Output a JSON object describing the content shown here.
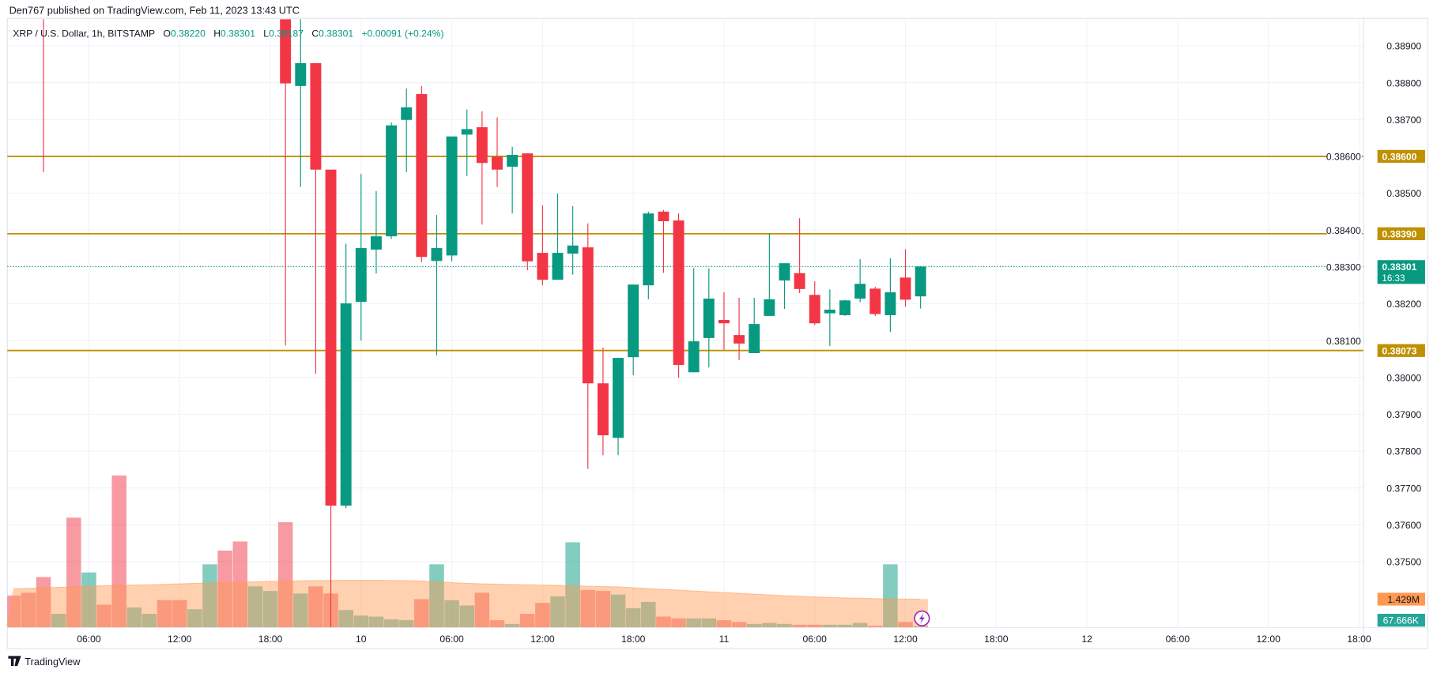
{
  "header": {
    "published": "Den767 published on TradingView.com, Feb 11, 2023 13:43 UTC"
  },
  "legend": {
    "symbol": "XRP / U.S. Dollar, 1h, BITSTAMP",
    "o_label": "O",
    "o": "0.38220",
    "h_label": "H",
    "h": "0.38301",
    "l_label": "L",
    "l": "0.38187",
    "c_label": "C",
    "c": "0.38301",
    "change": "+0.00091 (+0.24%)"
  },
  "footer": {
    "logo_text": "TradingView"
  },
  "colors": {
    "up": "#089981",
    "down": "#f23645",
    "level": "#bf9000",
    "volume_ma": "#ff9850",
    "grid": "#f0f3fa"
  },
  "chart_data": {
    "type": "candlestick",
    "title": "",
    "ylim": [
      0.3732,
      0.3897
    ],
    "y_ticks": [
      "0.38900",
      "0.38800",
      "0.38700",
      "0.38600",
      "0.38500",
      "0.38400",
      "0.38300",
      "0.38200",
      "0.38100",
      "0.38000",
      "0.37900",
      "0.37800",
      "0.37700",
      "0.37600",
      "0.37500"
    ],
    "x_ticks": [
      {
        "t": "2023-02-09 06:00",
        "label": "06:00"
      },
      {
        "t": "2023-02-09 12:00",
        "label": "12:00"
      },
      {
        "t": "2023-02-09 18:00",
        "label": "18:00"
      },
      {
        "t": "2023-02-10 00:00",
        "label": "10"
      },
      {
        "t": "2023-02-10 06:00",
        "label": "06:00"
      },
      {
        "t": "2023-02-10 12:00",
        "label": "12:00"
      },
      {
        "t": "2023-02-10 18:00",
        "label": "18:00"
      },
      {
        "t": "2023-02-11 00:00",
        "label": "11"
      },
      {
        "t": "2023-02-11 06:00",
        "label": "06:00"
      },
      {
        "t": "2023-02-11 12:00",
        "label": "12:00"
      },
      {
        "t": "2023-02-11 18:00",
        "label": "18:00"
      },
      {
        "t": "2023-02-12 00:00",
        "label": "12"
      },
      {
        "t": "2023-02-12 06:00",
        "label": "06:00"
      },
      {
        "t": "2023-02-12 12:00",
        "label": "12:00"
      },
      {
        "t": "2023-02-12 18:00",
        "label": "18:00"
      }
    ],
    "grid": true,
    "candle_fields": [
      "time",
      "open",
      "high",
      "low",
      "close"
    ],
    "candles": [
      [
        "2023-02-09 03:00",
        0.3905,
        0.391,
        0.38557,
        0.3899
      ],
      [
        "2023-02-09 19:00",
        0.39,
        0.3905,
        0.38087,
        0.38798
      ],
      [
        "2023-02-09 20:00",
        0.38791,
        0.3898,
        0.38517,
        0.38853
      ],
      [
        "2023-02-09 21:00",
        0.38853,
        0.38853,
        0.3801,
        0.38564
      ],
      [
        "2023-02-09 22:00",
        0.38564,
        0.38564,
        0.37321,
        0.37652
      ],
      [
        "2023-02-09 23:00",
        0.37652,
        0.38363,
        0.37645,
        0.38201
      ],
      [
        "2023-02-10 00:00",
        0.38205,
        0.38552,
        0.381,
        0.38351
      ],
      [
        "2023-02-10 01:00",
        0.38347,
        0.38506,
        0.38282,
        0.38383
      ],
      [
        "2023-02-10 02:00",
        0.38383,
        0.38692,
        0.38376,
        0.38684
      ],
      [
        "2023-02-10 03:00",
        0.38699,
        0.38784,
        0.38557,
        0.38733
      ],
      [
        "2023-02-10 04:00",
        0.38769,
        0.38791,
        0.38313,
        0.38327
      ],
      [
        "2023-02-10 05:00",
        0.38316,
        0.38441,
        0.3806,
        0.38351
      ],
      [
        "2023-02-10 06:00",
        0.38331,
        0.38654,
        0.38315,
        0.38654
      ],
      [
        "2023-02-10 07:00",
        0.38659,
        0.38727,
        0.38547,
        0.38674
      ],
      [
        "2023-02-10 08:00",
        0.38679,
        0.38722,
        0.38415,
        0.38582
      ],
      [
        "2023-02-10 09:00",
        0.38599,
        0.38706,
        0.38517,
        0.38564
      ],
      [
        "2023-02-10 10:00",
        0.38572,
        0.38626,
        0.38445,
        0.38604
      ],
      [
        "2023-02-10 11:00",
        0.38608,
        0.38608,
        0.38291,
        0.38315
      ],
      [
        "2023-02-10 12:00",
        0.38338,
        0.38467,
        0.3825,
        0.38265
      ],
      [
        "2023-02-10 13:00",
        0.38265,
        0.38499,
        0.38265,
        0.38338
      ],
      [
        "2023-02-10 14:00",
        0.38336,
        0.38465,
        0.38279,
        0.38358
      ],
      [
        "2023-02-10 15:00",
        0.38353,
        0.38418,
        0.37752,
        0.37984
      ],
      [
        "2023-02-10 16:00",
        0.37984,
        0.38081,
        0.37789,
        0.37843
      ],
      [
        "2023-02-10 17:00",
        0.37836,
        0.38053,
        0.37789,
        0.38053
      ],
      [
        "2023-02-10 18:00",
        0.38055,
        0.38252,
        0.38006,
        0.38252
      ],
      [
        "2023-02-10 19:00",
        0.3825,
        0.3845,
        0.38212,
        0.38445
      ],
      [
        "2023-02-10 20:00",
        0.3845,
        0.38454,
        0.38284,
        0.38424
      ],
      [
        "2023-02-10 21:00",
        0.38426,
        0.38445,
        0.37999,
        0.38034
      ],
      [
        "2023-02-10 22:00",
        0.38014,
        0.38297,
        0.38014,
        0.38098
      ],
      [
        "2023-02-10 23:00",
        0.38107,
        0.38296,
        0.38027,
        0.38214
      ],
      [
        "2023-02-11 00:00",
        0.38156,
        0.38231,
        0.38075,
        0.38147
      ],
      [
        "2023-02-11 01:00",
        0.38115,
        0.38216,
        0.38047,
        0.38092
      ],
      [
        "2023-02-11 02:00",
        0.38066,
        0.38216,
        0.38066,
        0.38145
      ],
      [
        "2023-02-11 03:00",
        0.38167,
        0.3839,
        0.38167,
        0.38212
      ],
      [
        "2023-02-11 04:00",
        0.38263,
        0.3831,
        0.38186,
        0.3831
      ],
      [
        "2023-02-11 05:00",
        0.38283,
        0.38432,
        0.38229,
        0.3824
      ],
      [
        "2023-02-11 06:00",
        0.38224,
        0.38261,
        0.38142,
        0.38147
      ],
      [
        "2023-02-11 07:00",
        0.38174,
        0.38239,
        0.38085,
        0.38184
      ],
      [
        "2023-02-11 08:00",
        0.38169,
        0.38211,
        0.38167,
        0.38209
      ],
      [
        "2023-02-11 09:00",
        0.38214,
        0.38321,
        0.38204,
        0.38254
      ],
      [
        "2023-02-11 10:00",
        0.38241,
        0.38246,
        0.38167,
        0.38172
      ],
      [
        "2023-02-11 11:00",
        0.38169,
        0.38323,
        0.38124,
        0.38231
      ],
      [
        "2023-02-11 12:00",
        0.38271,
        0.38348,
        0.38192,
        0.38211
      ],
      [
        "2023-02-11 13:00",
        0.3822,
        0.38301,
        0.38187,
        0.38301
      ]
    ],
    "volume_fields": [
      "time",
      "volume",
      "direction"
    ],
    "volume": [
      [
        "2023-02-09 01:00",
        1610000,
        "down"
      ],
      [
        "2023-02-09 02:00",
        1750000,
        "down"
      ],
      [
        "2023-02-09 03:00",
        2540000,
        "down"
      ],
      [
        "2023-02-09 04:00",
        690000,
        "up"
      ],
      [
        "2023-02-09 05:00",
        5530000,
        "down"
      ],
      [
        "2023-02-09 06:00",
        2770000,
        "up"
      ],
      [
        "2023-02-09 07:00",
        1150000,
        "down"
      ],
      [
        "2023-02-09 08:00",
        7650000,
        "down"
      ],
      [
        "2023-02-09 09:00",
        1010000,
        "up"
      ],
      [
        "2023-02-09 10:00",
        690000,
        "up"
      ],
      [
        "2023-02-09 11:00",
        1380000,
        "down"
      ],
      [
        "2023-02-09 12:00",
        1380000,
        "down"
      ],
      [
        "2023-02-09 13:00",
        920000,
        "up"
      ],
      [
        "2023-02-09 14:00",
        3180000,
        "up"
      ],
      [
        "2023-02-09 15:00",
        3870000,
        "down"
      ],
      [
        "2023-02-09 16:00",
        4330000,
        "down"
      ],
      [
        "2023-02-09 17:00",
        2070000,
        "up"
      ],
      [
        "2023-02-09 18:00",
        1840000,
        "up"
      ],
      [
        "2023-02-09 19:00",
        5300000,
        "down"
      ],
      [
        "2023-02-09 20:00",
        1710000,
        "up"
      ],
      [
        "2023-02-09 21:00",
        2070000,
        "down"
      ],
      [
        "2023-02-09 22:00",
        1710000,
        "down"
      ],
      [
        "2023-02-09 23:00",
        880000,
        "up"
      ],
      [
        "2023-02-10 00:00",
        600000,
        "up"
      ],
      [
        "2023-02-10 01:00",
        550000,
        "up"
      ],
      [
        "2023-02-10 02:00",
        410000,
        "up"
      ],
      [
        "2023-02-10 03:00",
        370000,
        "up"
      ],
      [
        "2023-02-10 04:00",
        1430000,
        "down"
      ],
      [
        "2023-02-10 05:00",
        3180000,
        "up"
      ],
      [
        "2023-02-10 06:00",
        1380000,
        "up"
      ],
      [
        "2023-02-10 07:00",
        1110000,
        "up"
      ],
      [
        "2023-02-10 08:00",
        1750000,
        "down"
      ],
      [
        "2023-02-10 09:00",
        370000,
        "down"
      ],
      [
        "2023-02-10 10:00",
        180000,
        "up"
      ],
      [
        "2023-02-10 11:00",
        690000,
        "down"
      ],
      [
        "2023-02-10 12:00",
        1240000,
        "down"
      ],
      [
        "2023-02-10 13:00",
        1570000,
        "up"
      ],
      [
        "2023-02-10 14:00",
        4290000,
        "up"
      ],
      [
        "2023-02-10 15:00",
        1890000,
        "down"
      ],
      [
        "2023-02-10 16:00",
        1840000,
        "down"
      ],
      [
        "2023-02-10 17:00",
        1660000,
        "up"
      ],
      [
        "2023-02-10 18:00",
        970000,
        "up"
      ],
      [
        "2023-02-10 19:00",
        1290000,
        "up"
      ],
      [
        "2023-02-10 20:00",
        550000,
        "down"
      ],
      [
        "2023-02-10 21:00",
        460000,
        "down"
      ],
      [
        "2023-02-10 22:00",
        460000,
        "up"
      ],
      [
        "2023-02-10 23:00",
        460000,
        "up"
      ],
      [
        "2023-02-11 00:00",
        370000,
        "down"
      ],
      [
        "2023-02-11 01:00",
        280000,
        "down"
      ],
      [
        "2023-02-11 02:00",
        180000,
        "up"
      ],
      [
        "2023-02-11 03:00",
        230000,
        "up"
      ],
      [
        "2023-02-11 04:00",
        180000,
        "up"
      ],
      [
        "2023-02-11 05:00",
        140000,
        "down"
      ],
      [
        "2023-02-11 06:00",
        140000,
        "down"
      ],
      [
        "2023-02-11 07:00",
        140000,
        "up"
      ],
      [
        "2023-02-11 08:00",
        140000,
        "up"
      ],
      [
        "2023-02-11 09:00",
        230000,
        "up"
      ],
      [
        "2023-02-11 10:00",
        90000,
        "down"
      ],
      [
        "2023-02-11 11:00",
        3180000,
        "up"
      ],
      [
        "2023-02-11 12:00",
        280000,
        "down"
      ],
      [
        "2023-02-11 13:00",
        67666,
        "up"
      ]
    ],
    "volume_ma": [
      1950000,
      1970000,
      2000000,
      2020000,
      2050000,
      2080000,
      2100000,
      2120000,
      2140000,
      2150000,
      2170000,
      2200000,
      2220000,
      2240000,
      2260000,
      2280000,
      2300000,
      2320000,
      2330000,
      2350000,
      2360000,
      2370000,
      2380000,
      2380000,
      2380000,
      2370000,
      2360000,
      2340000,
      2300000,
      2260000,
      2220000,
      2200000,
      2180000,
      2160000,
      2150000,
      2140000,
      2120000,
      2100000,
      2080000,
      2060000,
      2040000,
      2000000,
      1960000,
      1920000,
      1880000,
      1840000,
      1800000,
      1760000,
      1720000,
      1680000,
      1640000,
      1600000,
      1570000,
      1540000,
      1510000,
      1490000,
      1470000,
      1450000,
      1440000,
      1430000,
      1429000
    ],
    "horizontal_levels": [
      {
        "price": 0.386,
        "label": "0.38600"
      },
      {
        "price": 0.3839,
        "label": "0.38390"
      },
      {
        "price": 0.38073,
        "label": "0.38073"
      }
    ],
    "last_price": {
      "price": 0.38301,
      "label": "0.38301",
      "countdown": "16:33"
    },
    "volume_ma_label": "1.429M",
    "volume_last_label": "67.666K"
  }
}
